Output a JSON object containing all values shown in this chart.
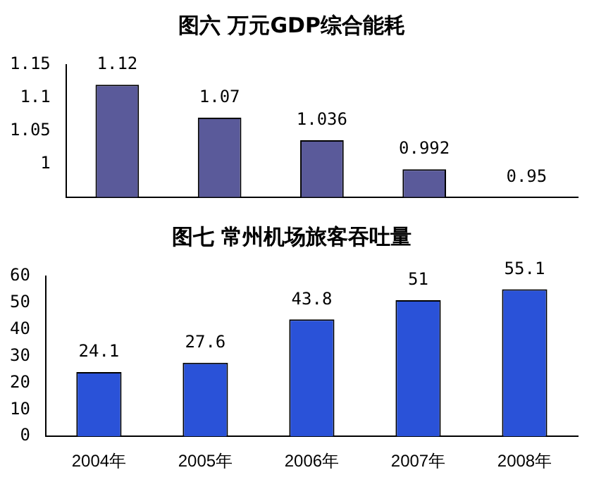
{
  "chart_data": [
    {
      "type": "bar",
      "title": "图六 万元GDP综合能耗",
      "categories": [
        null,
        null,
        null,
        null,
        null
      ],
      "values": [
        1.12,
        1.07,
        1.036,
        0.992,
        0.95
      ],
      "color": "#5a5a9a",
      "ylim": [
        0.95,
        1.15
      ],
      "yticks": [
        1,
        1.05,
        1.1,
        1.15
      ],
      "data_labels": true,
      "tick_labels": "y",
      "grid": false,
      "legend": false
    },
    {
      "type": "bar",
      "title": "图七 常州机场旅客吞吐量",
      "categories": [
        "2004年",
        "2005年",
        "2006年",
        "2007年",
        "2008年"
      ],
      "values": [
        24.1,
        27.6,
        43.8,
        51,
        55.1
      ],
      "color": "#2a52d8",
      "ylim": [
        0,
        60
      ],
      "yticks": [
        0,
        10,
        20,
        30,
        40,
        50,
        60
      ],
      "data_labels": true,
      "grid": false,
      "legend": false
    }
  ]
}
